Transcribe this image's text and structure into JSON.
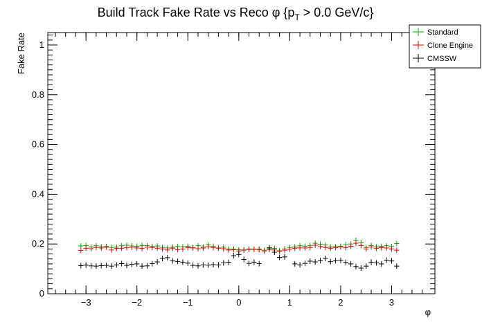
{
  "chart_data": {
    "type": "scatter",
    "title": "Build Track Fake Rate vs Reco φ {p",
    "title_sub": "T",
    "title_tail": " > 0.0 GeV/c}",
    "xlabel": "φ",
    "ylabel": "Fake Rate",
    "xlim": [
      -3.75,
      3.85
    ],
    "ylim": [
      0,
      1.05
    ],
    "grid": false,
    "legend_position": "top-right",
    "x_ticks": [
      -3,
      -2,
      -1,
      0,
      1,
      2,
      3
    ],
    "x_tick_labels": [
      "−3",
      "−2",
      "−1",
      "0",
      "1",
      "2",
      "3"
    ],
    "y_ticks": [
      0,
      0.2,
      0.4,
      0.6,
      0.8,
      1
    ],
    "y_tick_labels": [
      "0",
      "0.2",
      "0.4",
      "0.6",
      "0.8",
      "1"
    ],
    "x": [
      -3.1,
      -3.0,
      -2.9,
      -2.8,
      -2.7,
      -2.6,
      -2.5,
      -2.4,
      -2.3,
      -2.2,
      -2.1,
      -2.0,
      -1.9,
      -1.8,
      -1.7,
      -1.6,
      -1.5,
      -1.4,
      -1.3,
      -1.2,
      -1.1,
      -1.0,
      -0.9,
      -0.8,
      -0.7,
      -0.6,
      -0.5,
      -0.4,
      -0.3,
      -0.2,
      -0.1,
      0.0,
      0.1,
      0.2,
      0.3,
      0.4,
      0.5,
      0.6,
      0.7,
      0.8,
      0.9,
      1.0,
      1.1,
      1.2,
      1.3,
      1.4,
      1.5,
      1.6,
      1.7,
      1.8,
      1.9,
      2.0,
      2.1,
      2.2,
      2.3,
      2.4,
      2.5,
      2.6,
      2.7,
      2.8,
      2.9,
      3.0,
      3.1
    ],
    "series": [
      {
        "name": "Standard",
        "color": "#00aa00",
        "values": [
          0.192,
          0.194,
          0.188,
          0.193,
          0.189,
          0.19,
          0.186,
          0.187,
          0.193,
          0.195,
          0.192,
          0.191,
          0.194,
          0.193,
          0.19,
          0.192,
          0.186,
          0.184,
          0.187,
          0.19,
          0.189,
          0.191,
          0.185,
          0.193,
          0.188,
          0.197,
          0.191,
          0.184,
          0.187,
          0.18,
          0.179,
          0.177,
          0.176,
          0.18,
          0.178,
          0.179,
          0.175,
          0.181,
          0.182,
          0.173,
          0.18,
          0.186,
          0.188,
          0.193,
          0.191,
          0.194,
          0.203,
          0.199,
          0.196,
          0.188,
          0.189,
          0.191,
          0.197,
          0.2,
          0.214,
          0.205,
          0.186,
          0.194,
          0.189,
          0.191,
          0.193,
          0.19,
          0.202
        ]
      },
      {
        "name": "Clone Engine",
        "color": "#ee0000",
        "values": [
          0.174,
          0.183,
          0.181,
          0.186,
          0.184,
          0.187,
          0.176,
          0.182,
          0.183,
          0.185,
          0.187,
          0.184,
          0.182,
          0.187,
          0.186,
          0.183,
          0.18,
          0.176,
          0.183,
          0.177,
          0.18,
          0.185,
          0.184,
          0.181,
          0.184,
          0.189,
          0.185,
          0.183,
          0.181,
          0.176,
          0.177,
          0.172,
          0.175,
          0.178,
          0.179,
          0.177,
          0.172,
          0.178,
          0.176,
          0.171,
          0.175,
          0.179,
          0.183,
          0.184,
          0.184,
          0.186,
          0.195,
          0.19,
          0.186,
          0.183,
          0.186,
          0.188,
          0.185,
          0.191,
          0.203,
          0.194,
          0.18,
          0.188,
          0.183,
          0.185,
          0.184,
          0.18,
          0.175
        ]
      },
      {
        "name": "CMSSW",
        "color": "#000000",
        "values": [
          0.113,
          0.115,
          0.112,
          0.111,
          0.113,
          0.114,
          0.111,
          0.116,
          0.121,
          0.114,
          0.118,
          0.12,
          0.111,
          0.112,
          0.121,
          0.128,
          0.142,
          0.145,
          0.132,
          0.13,
          0.127,
          0.123,
          0.114,
          0.112,
          0.116,
          0.115,
          0.117,
          0.116,
          0.124,
          0.126,
          0.153,
          0.158,
          0.138,
          0.122,
          0.127,
          0.121,
          null,
          0.185,
          0.167,
          0.146,
          0.148,
          null,
          0.12,
          0.116,
          0.122,
          0.131,
          0.128,
          0.133,
          0.142,
          0.129,
          0.133,
          0.134,
          0.126,
          0.12,
          0.109,
          0.103,
          0.111,
          0.127,
          0.124,
          0.12,
          0.135,
          0.132,
          0.111
        ]
      }
    ]
  }
}
